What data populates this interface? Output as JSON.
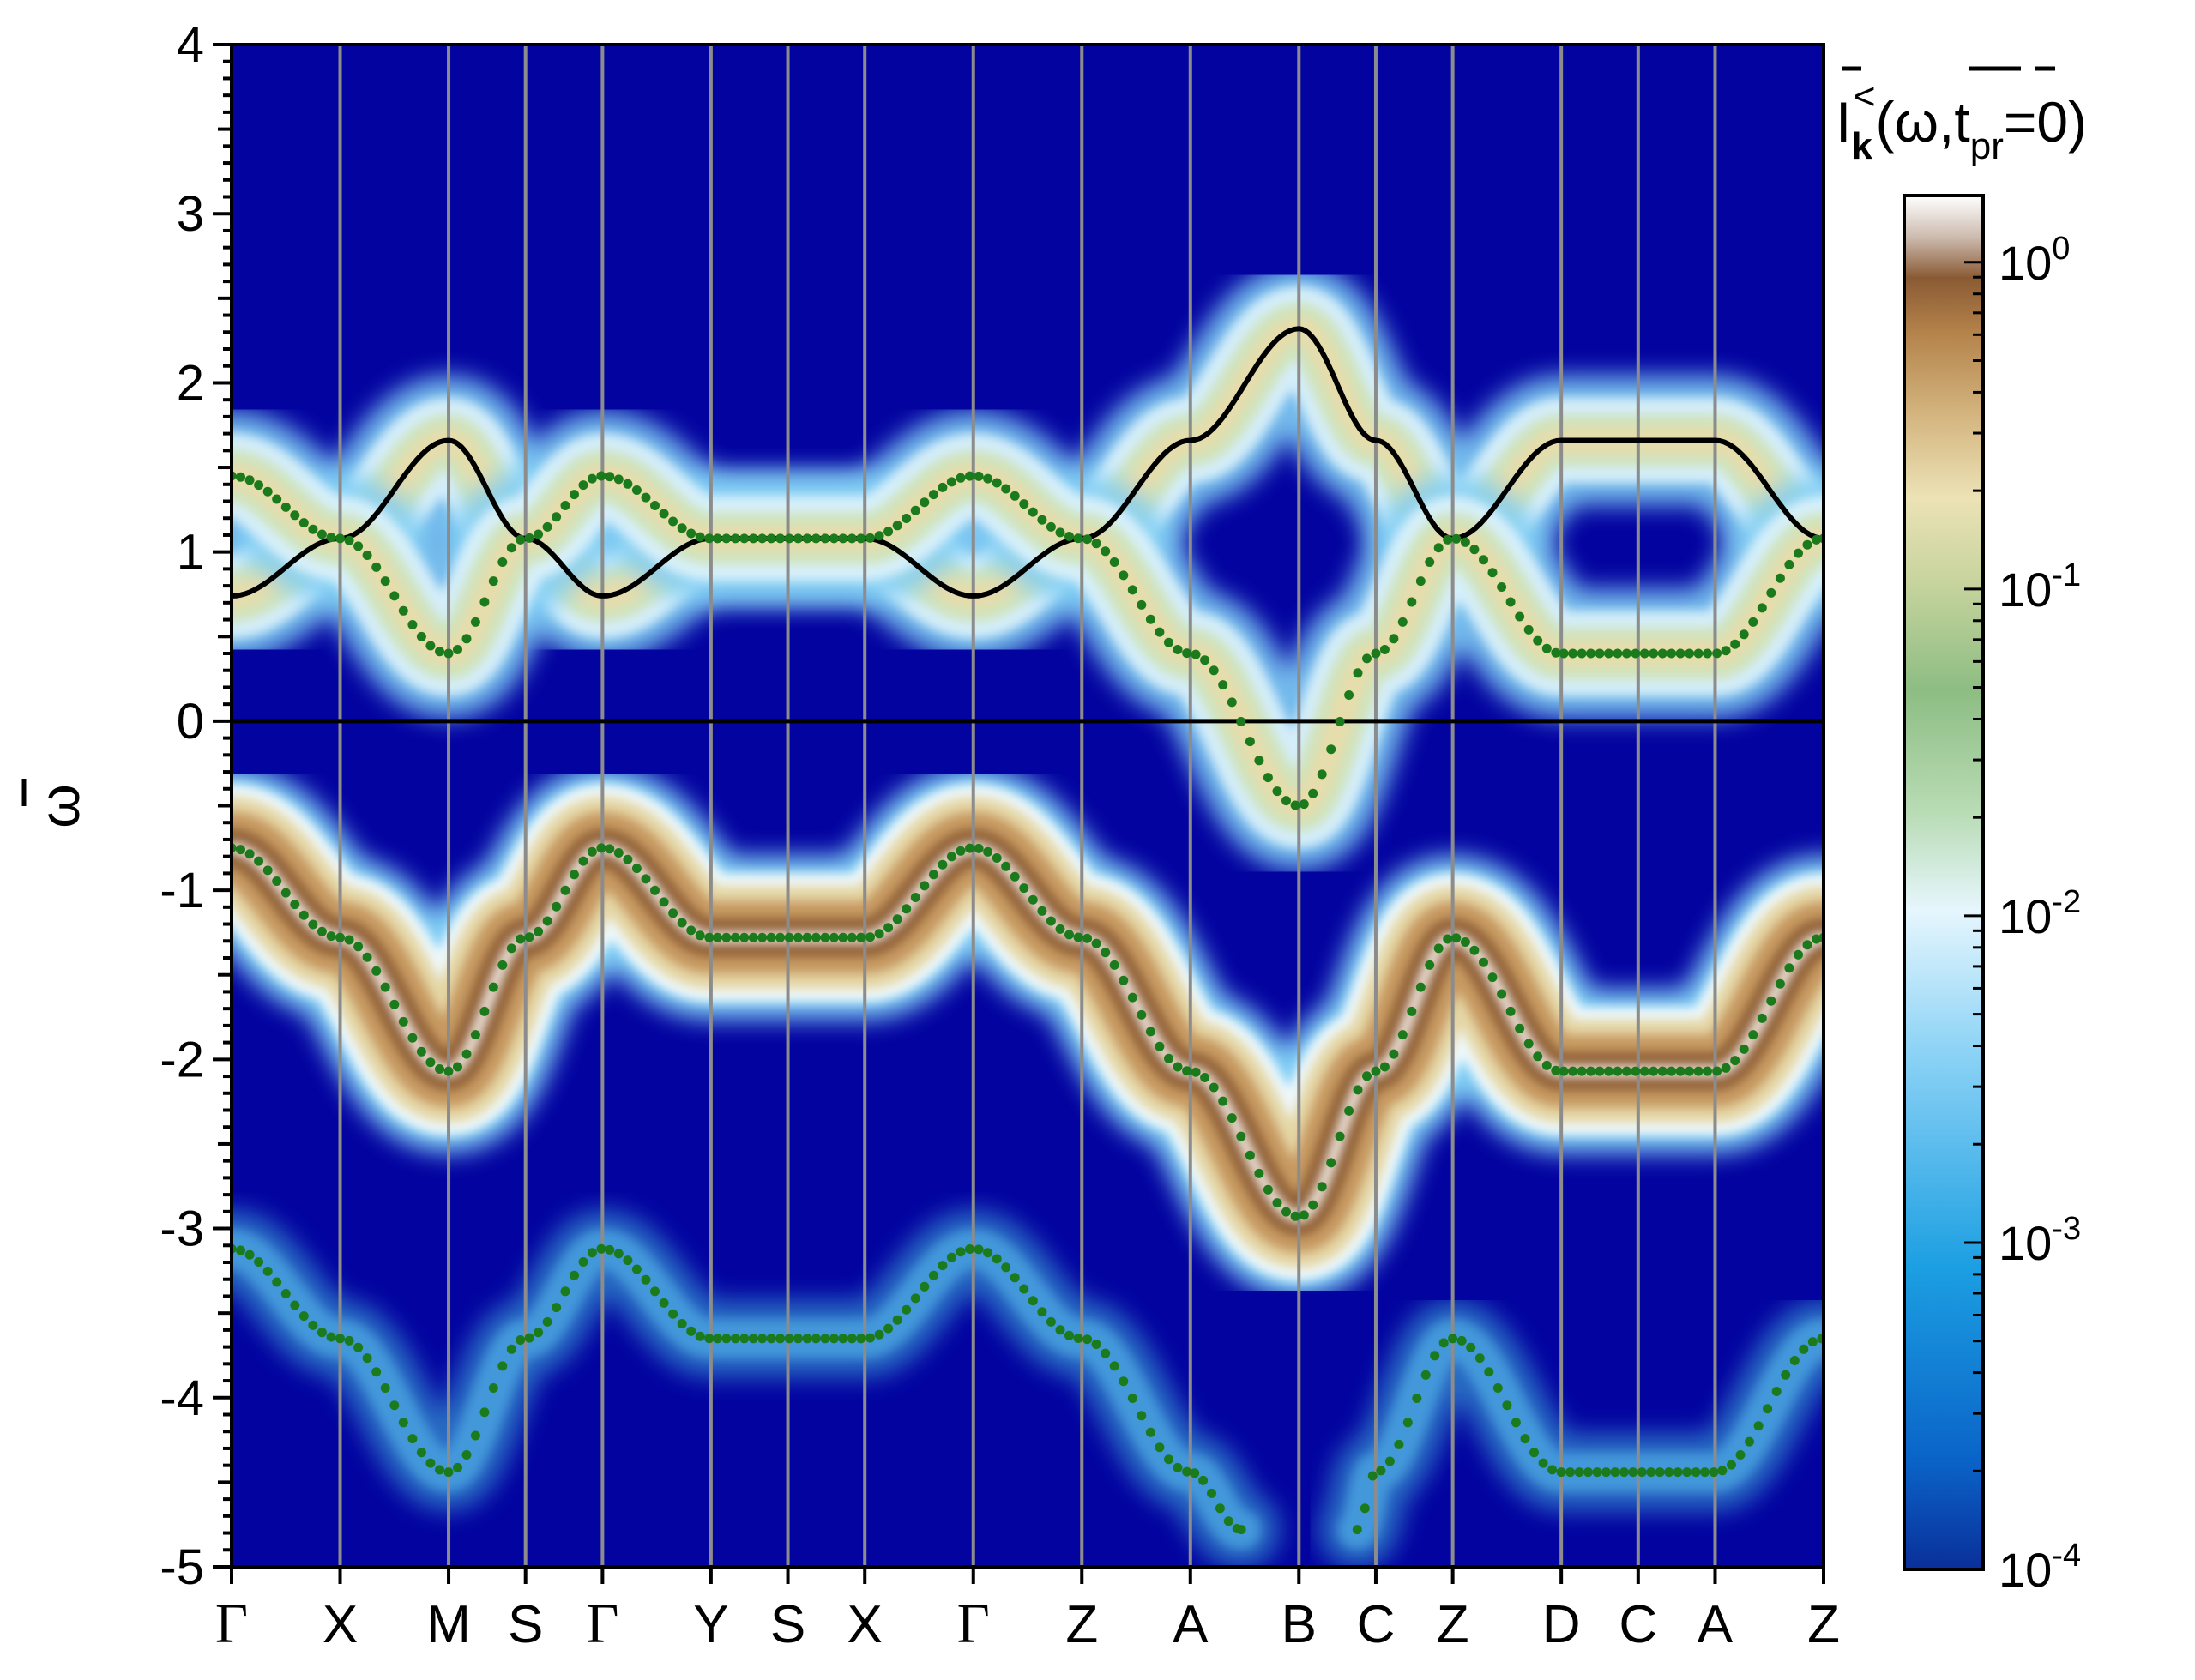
{
  "chart_data": {
    "type": "heatmap",
    "ylabel": "ω",
    "ylim": [
      -5,
      4
    ],
    "yticks": [
      "4",
      "3",
      "2",
      "1",
      "0",
      "-1",
      "-2",
      "-3",
      "-4",
      "-5"
    ],
    "ytick_values": [
      4,
      3,
      2,
      1,
      0,
      -1,
      -2,
      -3,
      -4,
      -5
    ],
    "kpath": [
      "Γ",
      "X",
      "M",
      "S",
      "Γ",
      "Y",
      "S",
      "X",
      "Γ",
      "Z",
      "A",
      "B",
      "C",
      "Z",
      "D",
      "C",
      "A",
      "Z"
    ],
    "kpath_positions": [
      0,
      0.618,
      1.236,
      1.674,
      2.112,
      2.73,
      3.168,
      3.606,
      4.224,
      4.842,
      5.46,
      6.078,
      6.516,
      6.954,
      7.572,
      8.01,
      8.448,
      9.066
    ],
    "colorbar": {
      "title": "I",
      "title_sub": "k",
      "title_sup": "<",
      "title_args": "(ω,t",
      "title_args_sub": "pr",
      "title_args_end": "=0)",
      "scale": "log",
      "range": [
        0.0001,
        1.6
      ],
      "ticks": [
        {
          "base": "10",
          "exp": "0",
          "value": 1
        },
        {
          "base": "10",
          "exp": "-1",
          "value": 0.1
        },
        {
          "base": "10",
          "exp": "-2",
          "value": 0.01
        },
        {
          "base": "10",
          "exp": "-3",
          "value": 0.001
        },
        {
          "base": "10",
          "exp": "-4",
          "value": 0.0001
        }
      ]
    },
    "series": [
      {
        "color": "#000000",
        "style": "line",
        "points": [
          [
            0,
            0.74
          ],
          [
            0.618,
            1.08
          ],
          [
            1.236,
            1.66
          ],
          [
            1.674,
            1.08
          ],
          [
            2.112,
            0.74
          ],
          [
            2.73,
            1.08
          ],
          [
            3.168,
            1.08
          ],
          [
            3.606,
            1.08
          ],
          [
            4.224,
            0.74
          ],
          [
            4.842,
            1.08
          ],
          [
            5.46,
            1.66
          ],
          [
            6.078,
            2.32
          ],
          [
            6.516,
            1.66
          ],
          [
            6.954,
            1.08
          ],
          [
            7.572,
            1.66
          ],
          [
            8.01,
            1.66
          ],
          [
            8.448,
            1.66
          ],
          [
            9.066,
            1.08
          ]
        ]
      },
      {
        "color": "#1b7a1b",
        "style": "dotted",
        "points": [
          [
            0,
            1.45
          ],
          [
            0.618,
            1.08
          ],
          [
            1.236,
            0.4
          ],
          [
            1.674,
            1.08
          ],
          [
            2.112,
            1.45
          ],
          [
            2.73,
            1.08
          ],
          [
            3.168,
            1.08
          ],
          [
            3.606,
            1.08
          ],
          [
            4.224,
            1.45
          ],
          [
            4.842,
            1.08
          ],
          [
            5.46,
            0.4
          ],
          [
            6.078,
            -0.5
          ],
          [
            6.516,
            0.4
          ],
          [
            6.954,
            1.08
          ],
          [
            7.572,
            0.4
          ],
          [
            8.01,
            0.4
          ],
          [
            8.448,
            0.4
          ],
          [
            9.066,
            1.08
          ]
        ]
      },
      {
        "color": "#1b7a1b",
        "style": "dotted",
        "points": [
          [
            0,
            -0.75
          ],
          [
            0.618,
            -1.28
          ],
          [
            1.236,
            -2.07
          ],
          [
            1.674,
            -1.28
          ],
          [
            2.112,
            -0.75
          ],
          [
            2.73,
            -1.28
          ],
          [
            3.168,
            -1.28
          ],
          [
            3.606,
            -1.28
          ],
          [
            4.224,
            -0.75
          ],
          [
            4.842,
            -1.28
          ],
          [
            5.46,
            -2.07
          ],
          [
            6.078,
            -2.93
          ],
          [
            6.516,
            -2.07
          ],
          [
            6.954,
            -1.28
          ],
          [
            7.572,
            -2.07
          ],
          [
            8.01,
            -2.07
          ],
          [
            8.448,
            -2.07
          ],
          [
            9.066,
            -1.28
          ]
        ]
      },
      {
        "color": "#1b7a1b",
        "style": "dotted",
        "points": [
          [
            0,
            -3.12
          ],
          [
            0.618,
            -3.65
          ],
          [
            1.236,
            -4.44
          ],
          [
            1.674,
            -3.65
          ],
          [
            2.112,
            -3.12
          ],
          [
            2.73,
            -3.65
          ],
          [
            3.168,
            -3.65
          ],
          [
            3.606,
            -3.65
          ],
          [
            4.224,
            -3.12
          ],
          [
            4.842,
            -3.65
          ],
          [
            5.46,
            -4.44
          ],
          [
            5.75,
            -4.78
          ]
        ]
      },
      {
        "color": "#1b7a1b",
        "style": "dotted",
        "points": [
          [
            6.41,
            -4.78
          ],
          [
            6.516,
            -4.44
          ],
          [
            6.954,
            -3.65
          ],
          [
            7.572,
            -4.44
          ],
          [
            8.01,
            -4.44
          ],
          [
            8.448,
            -4.44
          ],
          [
            9.066,
            -3.65
          ]
        ]
      }
    ],
    "colors": {
      "background": "#0303a0",
      "dotted_band": "#1b7a1b",
      "dispersion_line": "#000000",
      "vertical_lines": "#8c8c8c"
    }
  }
}
